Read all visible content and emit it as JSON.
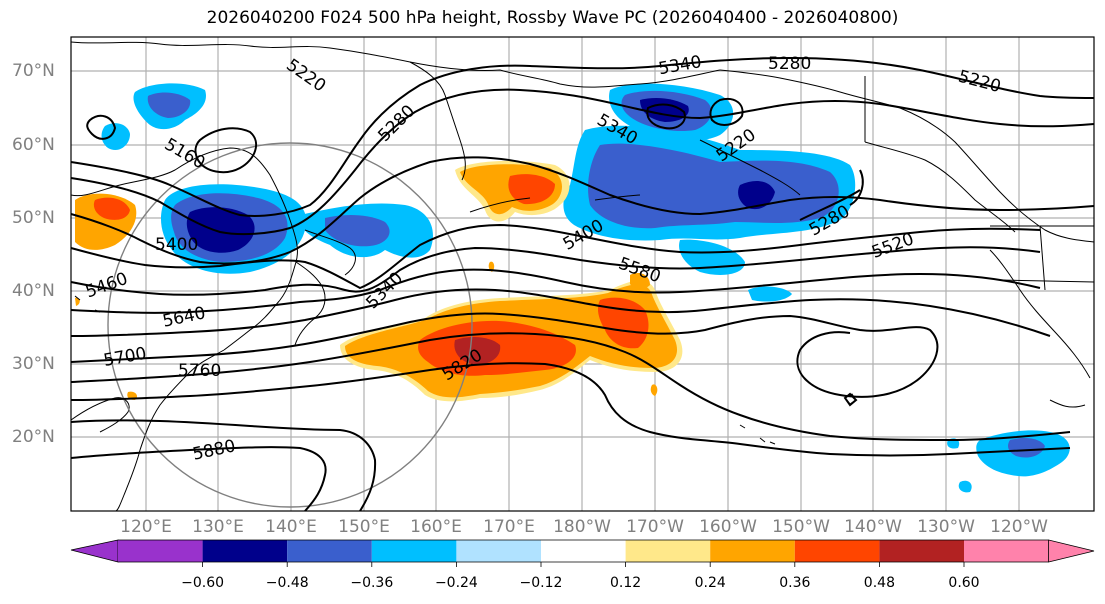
{
  "title": "2026040200 F024 500 hPa height, Rossby Wave PC (2026040400 - 2026040800)",
  "latitude_labels": [
    "70°N",
    "60°N",
    "50°N",
    "40°N",
    "30°N",
    "20°N"
  ],
  "longitude_labels": [
    "120°E",
    "130°E",
    "140°E",
    "150°E",
    "160°E",
    "170°E",
    "180°W",
    "170°W",
    "160°W",
    "150°W",
    "140°W",
    "130°W",
    "120°W"
  ],
  "contour_labels": [
    "5340",
    "5280",
    "5220",
    "5220",
    "5280",
    "5160",
    "5340",
    "5220",
    "5400",
    "5460",
    "5400",
    "5280",
    "5520",
    "5340",
    "5580",
    "5640",
    "5700",
    "5820",
    "5760",
    "5880"
  ],
  "colorbar": {
    "ticks": [
      "−0.60",
      "−0.48",
      "−0.36",
      "−0.24",
      "−0.12",
      "0.12",
      "0.24",
      "0.36",
      "0.48",
      "0.60"
    ],
    "colors": [
      "#9932CC",
      "#00008B",
      "#3A5FCD",
      "#00BFFF",
      "#B0E2FF",
      "#FFFFFF",
      "#FFE88A",
      "#FFA500",
      "#FF4500",
      "#B22222",
      "#FF82AB"
    ]
  },
  "map_colors": {
    "land_line": "#000000",
    "height_contour": "#000000",
    "grid": "#b0b0b0",
    "circle": "#808080"
  }
}
